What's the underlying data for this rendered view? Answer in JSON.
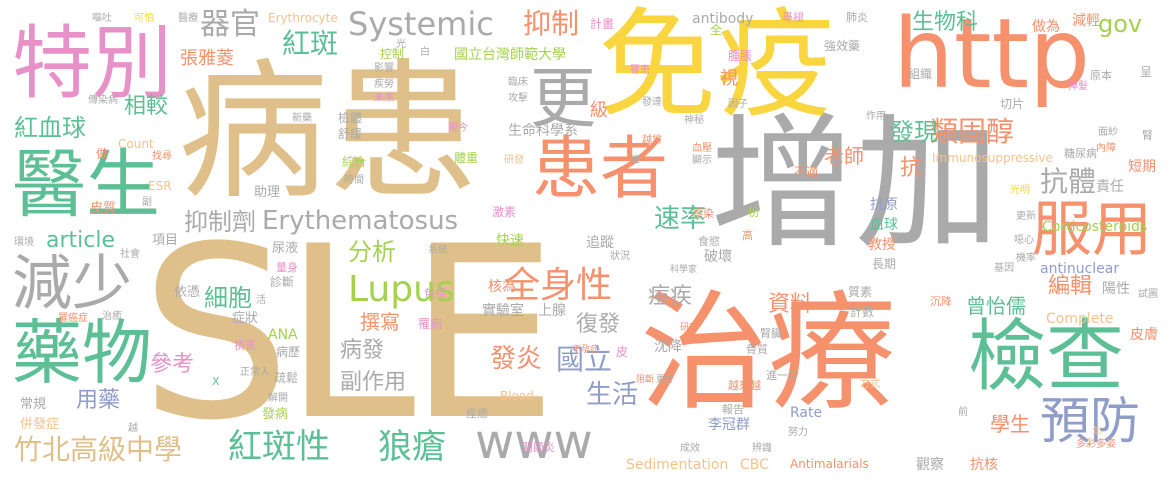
{
  "words": [
    {
      "t": "SLE",
      "c": "#dfc08a"
    },
    {
      "t": "病患",
      "c": "#dfc08a"
    },
    {
      "t": "增加",
      "c": "#aaaaaa"
    },
    {
      "t": "治療",
      "c": "#f5916d"
    },
    {
      "t": "免疫",
      "c": "#f9d53f"
    },
    {
      "t": "http",
      "c": "#f5916d"
    },
    {
      "t": "患者",
      "c": "#f5916d"
    },
    {
      "t": "特別",
      "c": "#e891c8"
    },
    {
      "t": "醫生",
      "c": "#5dbf95"
    },
    {
      "t": "檢查",
      "c": "#5dbf95"
    },
    {
      "t": "藥物",
      "c": "#5dbf95"
    },
    {
      "t": "服用",
      "c": "#f5916d"
    },
    {
      "t": "減少",
      "c": "#aaaaaa"
    },
    {
      "t": "www",
      "c": "#aaaaaa"
    },
    {
      "t": "預防",
      "c": "#8f9dc9"
    },
    {
      "t": "更",
      "c": "#aaaaaa"
    },
    {
      "t": "Systemic",
      "c": "#aaaaaa"
    },
    {
      "t": "抑制",
      "c": "#f5916d"
    },
    {
      "t": "器官",
      "c": "#aaaaaa"
    },
    {
      "t": "紅斑",
      "c": "#5dbf95"
    },
    {
      "t": "Lupus",
      "c": "#a4d24e"
    },
    {
      "t": "全身性",
      "c": "#f5916d"
    },
    {
      "t": "紅斑性",
      "c": "#5dbf95"
    },
    {
      "t": "狼瘡",
      "c": "#5dbf95"
    },
    {
      "t": "竹北高級中學",
      "c": "#dfc08a"
    },
    {
      "t": "抑制劑",
      "c": "#aaaaaa"
    },
    {
      "t": "Erythematosus",
      "c": "#aaaaaa"
    },
    {
      "t": "紅血球",
      "c": "#5dbf95"
    },
    {
      "t": "相較",
      "c": "#5dbf95"
    },
    {
      "t": "類固醇",
      "c": "#f5916d"
    },
    {
      "t": "抗體",
      "c": "#aaaaaa"
    },
    {
      "t": "發現",
      "c": "#5dbf95"
    },
    {
      "t": "生物科",
      "c": "#5dbf95"
    },
    {
      "t": "gov",
      "c": "#a4d24e"
    },
    {
      "t": "article",
      "c": "#5dbf95"
    },
    {
      "t": "細胞",
      "c": "#5dbf95"
    },
    {
      "t": "分析",
      "c": "#a4d24e"
    },
    {
      "t": "速率",
      "c": "#5dbf95"
    },
    {
      "t": "資料",
      "c": "#f5916d"
    },
    {
      "t": "編輯",
      "c": "#f5916d"
    },
    {
      "t": "參考",
      "c": "#e891c8"
    },
    {
      "t": "病發",
      "c": "#aaaaaa"
    },
    {
      "t": "副作用",
      "c": "#aaaaaa"
    },
    {
      "t": "發炎",
      "c": "#f5916d"
    },
    {
      "t": "國立",
      "c": "#8f9dc9"
    },
    {
      "t": "生活",
      "c": "#8f9dc9"
    },
    {
      "t": "復發",
      "c": "#aaaaaa"
    },
    {
      "t": "用藥",
      "c": "#8f9dc9"
    },
    {
      "t": "曾怡儒",
      "c": "#5dbf95"
    },
    {
      "t": "學生",
      "c": "#f5916d"
    },
    {
      "t": "老師",
      "c": "#f5916d"
    },
    {
      "t": "撰寫",
      "c": "#f5916d"
    },
    {
      "t": "痘疾",
      "c": "#aaaaaa"
    },
    {
      "t": "張雅菱",
      "c": "#f5916d"
    },
    {
      "t": "國立台灣師範大學",
      "c": "#a4d24e"
    },
    {
      "t": "生命科學系",
      "c": "#aaaaaa"
    },
    {
      "t": "李冠群",
      "c": "#8f9dc9"
    },
    {
      "t": "實驗室",
      "c": "#aaaaaa"
    },
    {
      "t": "核為",
      "c": "#f5916d"
    },
    {
      "t": "上腺",
      "c": "#aaaaaa"
    },
    {
      "t": "沈降",
      "c": "#aaaaaa"
    },
    {
      "t": "破壞",
      "c": "#aaaaaa"
    },
    {
      "t": "教授",
      "c": "#f5916d"
    },
    {
      "t": "血球",
      "c": "#5dbf95"
    },
    {
      "t": "抗原",
      "c": "#8f9dc9"
    },
    {
      "t": "短期",
      "c": "#f5916d"
    },
    {
      "t": "責任",
      "c": "#aaaaaa"
    },
    {
      "t": "陽性",
      "c": "#aaaaaa"
    },
    {
      "t": "皮膚",
      "c": "#f5916d"
    },
    {
      "t": "抗核",
      "c": "#f5916d"
    },
    {
      "t": "觀察",
      "c": "#aaaaaa"
    },
    {
      "t": "追蹤",
      "c": "#aaaaaa"
    },
    {
      "t": "快速",
      "c": "#a4d24e"
    },
    {
      "t": "減輕",
      "c": "#f5916d"
    },
    {
      "t": "做為",
      "c": "#f5916d"
    },
    {
      "t": "Corticosteroids",
      "c": "#a4d24e"
    },
    {
      "t": "antinuclear",
      "c": "#8f9dc9"
    },
    {
      "t": "Complete",
      "c": "#f6c28c"
    },
    {
      "t": "Sedimentation",
      "c": "#f6c28c"
    },
    {
      "t": "CBC",
      "c": "#f6c28c"
    },
    {
      "t": "Antimalarials",
      "c": "#f5916d"
    },
    {
      "t": "Rate",
      "c": "#8f9dc9"
    },
    {
      "t": "Blood",
      "c": "#f6c28c"
    },
    {
      "t": "ANA",
      "c": "#a4d24e"
    },
    {
      "t": "Count",
      "c": "#f6c28c"
    },
    {
      "t": "ESR",
      "c": "#f6c28c"
    },
    {
      "t": "Immunosuppressive",
      "c": "#f6c28c"
    },
    {
      "t": "antibody",
      "c": "#aaaaaa"
    },
    {
      "t": "Erythrocyte",
      "c": "#f6c28c"
    },
    {
      "t": "項目",
      "c": "#aaaaaa"
    },
    {
      "t": "尿液",
      "c": "#aaaaaa"
    },
    {
      "t": "診斷",
      "c": "#aaaaaa"
    },
    {
      "t": "依憑",
      "c": "#aaaaaa"
    },
    {
      "t": "症狀",
      "c": "#aaaaaa"
    },
    {
      "t": "病歷",
      "c": "#aaaaaa"
    },
    {
      "t": "疏鬆",
      "c": "#aaaaaa"
    },
    {
      "t": "發病",
      "c": "#a4d24e"
    },
    {
      "t": "常規",
      "c": "#aaaaaa"
    },
    {
      "t": "併發症",
      "c": "#f6c28c"
    },
    {
      "t": "皮質",
      "c": "#f5916d"
    },
    {
      "t": "綜合",
      "c": "#a4d24e"
    },
    {
      "t": "體重",
      "c": "#a4d24e"
    },
    {
      "t": "舒緩",
      "c": "#aaaaaa"
    },
    {
      "t": "檢體",
      "c": "#aaaaaa"
    },
    {
      "t": "助理",
      "c": "#aaaaaa"
    },
    {
      "t": "級",
      "c": "#f5916d"
    },
    {
      "t": "視",
      "c": "#f5916d"
    },
    {
      "t": "抗",
      "c": "#f5916d"
    },
    {
      "t": "控制",
      "c": "#a4d24e"
    },
    {
      "t": "計畫",
      "c": "#e891c8"
    },
    {
      "t": "全",
      "c": "#a4d24e"
    },
    {
      "t": "腫脹",
      "c": "#e891c8"
    },
    {
      "t": "強效藥",
      "c": "#aaaaaa"
    },
    {
      "t": "組織",
      "c": "#aaaaaa"
    },
    {
      "t": "切片",
      "c": "#aaaaaa"
    },
    {
      "t": "原本",
      "c": "#aaaaaa"
    },
    {
      "t": "呈",
      "c": "#aaaaaa"
    },
    {
      "t": "肺炎",
      "c": "#aaaaaa"
    },
    {
      "t": "尋褪",
      "c": "#e891c8"
    },
    {
      "t": "腎",
      "c": "#aaaaaa"
    },
    {
      "t": "糖尿病",
      "c": "#aaaaaa"
    },
    {
      "t": "骨質",
      "c": "#aaaaaa"
    },
    {
      "t": "報告",
      "c": "#aaaaaa"
    },
    {
      "t": "進一步",
      "c": "#aaaaaa"
    },
    {
      "t": "越來越",
      "c": "#f5916d"
    },
    {
      "t": "感染",
      "c": "#f5916d"
    },
    {
      "t": "高",
      "c": "#f5916d"
    },
    {
      "t": "食慾",
      "c": "#aaaaaa"
    },
    {
      "t": "質素",
      "c": "#aaaaaa"
    },
    {
      "t": "計數",
      "c": "#aaaaaa"
    },
    {
      "t": "長期",
      "c": "#aaaaaa"
    },
    {
      "t": "不適",
      "c": "#f5916d"
    },
    {
      "t": "份",
      "c": "#a4d24e"
    },
    {
      "t": "激素",
      "c": "#e891c8"
    },
    {
      "t": "腎臟",
      "c": "#aaaaaa"
    },
    {
      "t": "關節炎",
      "c": "#e891c8"
    },
    {
      "t": "方式",
      "c": "#f6c28c"
    },
    {
      "t": "罹病",
      "c": "#e891c8"
    },
    {
      "t": "損害",
      "c": "#e891c8"
    },
    {
      "t": "包括",
      "c": "#e891c8"
    },
    {
      "t": "量身",
      "c": "#e891c8"
    },
    {
      "t": "研發",
      "c": "#f6c28c"
    },
    {
      "t": "痊癒",
      "c": "#aaaaaa"
    },
    {
      "t": "系統",
      "c": "#aaaaaa"
    },
    {
      "t": "皮",
      "c": "#e891c8"
    },
    {
      "t": "沉降",
      "c": "#f5916d"
    },
    {
      "t": "越常",
      "c": "#f5916d"
    },
    {
      "t": "血壓",
      "c": "#f5916d"
    },
    {
      "t": "神秘",
      "c": "#aaaaaa"
    },
    {
      "t": "發達",
      "c": "#aaaaaa"
    },
    {
      "t": "成效",
      "c": "#aaaaaa"
    },
    {
      "t": "辨識",
      "c": "#aaaaaa"
    },
    {
      "t": "努力",
      "c": "#aaaaaa"
    },
    {
      "t": "前",
      "c": "#aaaaaa"
    },
    {
      "t": "年",
      "c": "#f6c28c"
    },
    {
      "t": "多彩多姿",
      "c": "#f5916d"
    },
    {
      "t": "試圖",
      "c": "#aaaaaa"
    },
    {
      "t": "機率",
      "c": "#aaaaaa"
    },
    {
      "t": "基因",
      "c": "#aaaaaa"
    },
    {
      "t": "噁心",
      "c": "#aaaaaa"
    },
    {
      "t": "更新",
      "c": "#aaaaaa"
    },
    {
      "t": "光明",
      "c": "#f9d53f"
    },
    {
      "t": "內障",
      "c": "#f5916d"
    },
    {
      "t": "面紗",
      "c": "#aaaaaa"
    },
    {
      "t": "掉髮",
      "c": "#e891c8"
    },
    {
      "t": "作用",
      "c": "#aaaaaa"
    },
    {
      "t": "因子",
      "c": "#aaaaaa"
    },
    {
      "t": "臨床",
      "c": "#aaaaaa"
    },
    {
      "t": "攻擊",
      "c": "#aaaaaa"
    },
    {
      "t": "罹患",
      "c": "#e891c8"
    },
    {
      "t": "現今",
      "c": "#e891c8"
    },
    {
      "t": "新藥",
      "c": "#aaaaaa"
    },
    {
      "t": "影響",
      "c": "#aaaaaa"
    },
    {
      "t": "疾勞",
      "c": "#aaaaaa"
    },
    {
      "t": "未來",
      "c": "#e891c8"
    },
    {
      "t": "傳染病",
      "c": "#aaaaaa"
    },
    {
      "t": "找尋",
      "c": "#f5916d"
    },
    {
      "t": "做",
      "c": "#f5916d"
    },
    {
      "t": "副",
      "c": "#aaaaaa"
    },
    {
      "t": "嘔吐",
      "c": "#aaaaaa"
    },
    {
      "t": "可怕",
      "c": "#f9d53f"
    },
    {
      "t": "醫療",
      "c": "#aaaaaa"
    },
    {
      "t": "白",
      "c": "#aaaaaa"
    },
    {
      "t": "光",
      "c": "#aaaaaa"
    },
    {
      "t": "唯",
      "c": "#aaaaaa"
    },
    {
      "t": "顯示",
      "c": "#aaaaaa"
    },
    {
      "t": "時間",
      "c": "#aaaaaa"
    },
    {
      "t": "環境",
      "c": "#aaaaaa"
    },
    {
      "t": "社會",
      "c": "#aaaaaa"
    },
    {
      "t": "治癒",
      "c": "#aaaaaa"
    },
    {
      "t": "罹癌症",
      "c": "#f5916d"
    },
    {
      "t": "正常人",
      "c": "#aaaaaa"
    },
    {
      "t": "活",
      "c": "#aaaaaa"
    },
    {
      "t": "解開",
      "c": "#aaaaaa"
    },
    {
      "t": "越",
      "c": "#aaaaaa"
    },
    {
      "t": "X",
      "c": "#5dbf95"
    },
    {
      "t": "不孕症",
      "c": "#f5916d"
    },
    {
      "t": "阻斷",
      "c": "#f5916d"
    },
    {
      "t": "更好",
      "c": "#aaaaaa"
    },
    {
      "t": "科學家",
      "c": "#aaaaaa"
    },
    {
      "t": "狀況",
      "c": "#aaaaaa"
    },
    {
      "t": "研究",
      "c": "#f5916d"
    }
  ]
}
